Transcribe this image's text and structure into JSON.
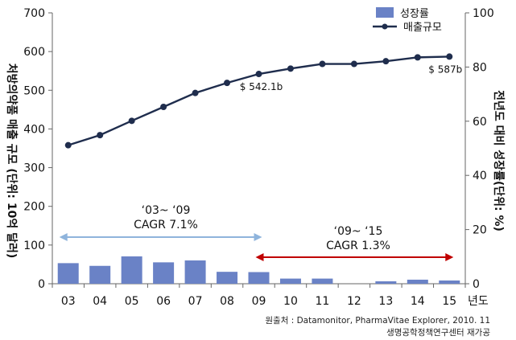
{
  "chart_data": {
    "type": "bar+line",
    "categories": [
      "03",
      "04",
      "05",
      "06",
      "07",
      "08",
      "09",
      "10",
      "11",
      "12",
      "13",
      "14",
      "15"
    ],
    "x_axis_suffix": "년도",
    "series": [
      {
        "name": "성장률",
        "type": "bar",
        "axis": "right",
        "color": "#6a82c6",
        "values": [
          7.6,
          6.6,
          10.1,
          7.9,
          8.6,
          4.4,
          4.3,
          1.9,
          1.9,
          0,
          0.9,
          1.5,
          1.2
        ]
      },
      {
        "name": "매출규모",
        "type": "line",
        "axis": "left",
        "color": "#1f2d4d",
        "values": [
          358,
          384,
          421,
          457,
          493,
          519,
          542.1,
          556,
          568,
          568,
          575,
          585,
          587
        ]
      }
    ],
    "yleft": {
      "label": "처방의약품 매출 규모 (단위: 10억 달러)",
      "ticks": [
        0,
        100,
        200,
        300,
        400,
        500,
        600,
        700
      ],
      "range": [
        0,
        700
      ]
    },
    "yright": {
      "label": "전년도 대비 성장률(단위: %)",
      "ticks": [
        0,
        20,
        40,
        60,
        80,
        100
      ],
      "range": [
        0,
        100
      ]
    },
    "point_labels": [
      {
        "index": 6,
        "text": "$ 542.1b"
      },
      {
        "index": 12,
        "text": "$ 587b"
      }
    ],
    "annotations": [
      {
        "period": "‘03~ ‘09",
        "cagr": "CAGR   7.1%",
        "from": 0,
        "to": 6,
        "color": "#8fb4dc"
      },
      {
        "period": "‘09~ ‘15",
        "cagr": "CAGR   1.3%",
        "from": 6,
        "to": 12,
        "color": "#c00000"
      }
    ],
    "legend": {
      "position": "top-right"
    }
  },
  "source": {
    "line1": "원출처 : Datamonitor, PharmaVitae Explorer, 2010. 11",
    "line2": "생명공학정책연구센터 재가공"
  }
}
